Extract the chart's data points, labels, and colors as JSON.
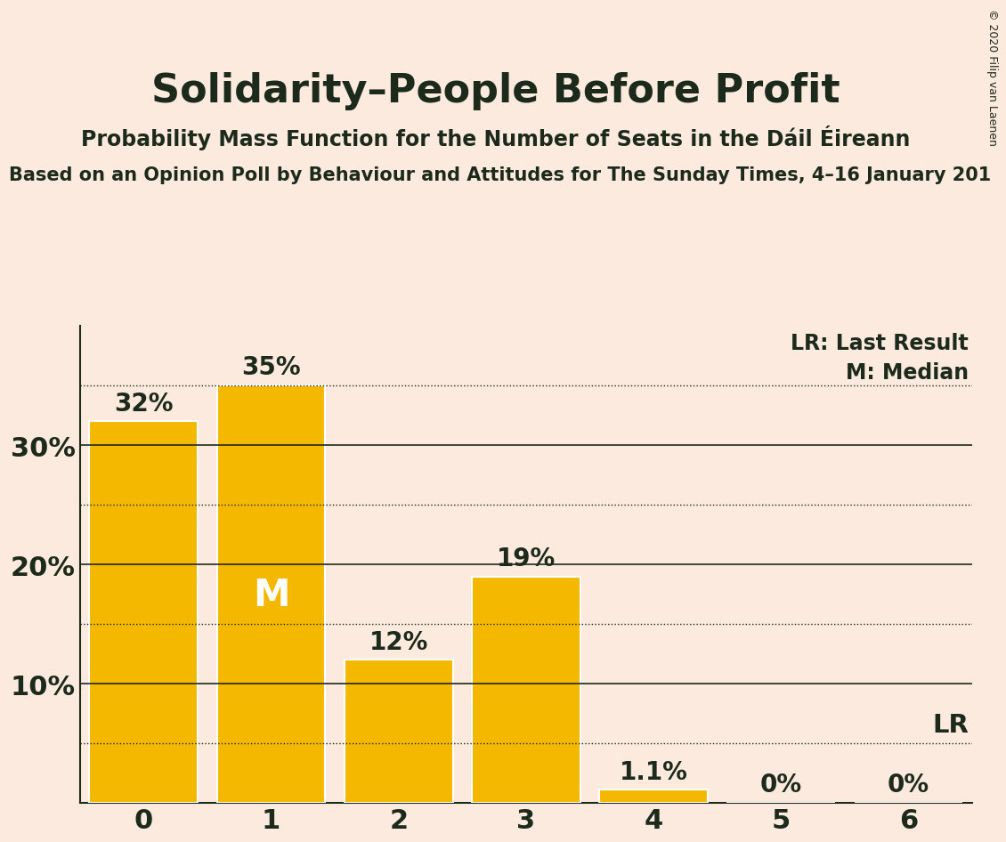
{
  "title": "Solidarity–People Before Profit",
  "subtitle": "Probability Mass Function for the Number of Seats in the Dáil Éireann",
  "sub2": "Based on an Opinion Poll by Behaviour and Attitudes for The Sunday Times, 4–16 January 201",
  "copyright": "© 2020 Filip van Laenen",
  "categories": [
    0,
    1,
    2,
    3,
    4,
    5,
    6
  ],
  "values": [
    0.32,
    0.35,
    0.12,
    0.19,
    0.011,
    0.0,
    0.0
  ],
  "bar_labels": [
    "32%",
    "35%",
    "12%",
    "19%",
    "1.1%",
    "0%",
    "0%"
  ],
  "bar_color": "#F5B800",
  "bar_edge_color": "#FFFFFF",
  "background_color": "#FCEADE",
  "text_color": "#1c2a1c",
  "median_seat": 1,
  "median_label": "M",
  "lr_value": 0.05,
  "lr_label": "LR",
  "lr_legend": "LR: Last Result",
  "m_legend": "M: Median",
  "ytick_labels": [
    "",
    "10%",
    "20%",
    "30%"
  ],
  "ytick_values": [
    0.0,
    0.1,
    0.2,
    0.3
  ],
  "ylim": [
    0,
    0.4
  ],
  "dotted_lines": [
    0.35,
    0.25,
    0.15,
    0.05
  ],
  "solid_lines": [
    0.3,
    0.2,
    0.1
  ],
  "bar_label_fontsize": 20,
  "tick_fontsize": 22,
  "median_label_color": "#FFFFFF",
  "median_label_fontsize": 30,
  "title_fontsize": 32,
  "subtitle_fontsize": 17,
  "sub2_fontsize": 15,
  "legend_fontsize": 17,
  "lr_label_fontsize": 21
}
